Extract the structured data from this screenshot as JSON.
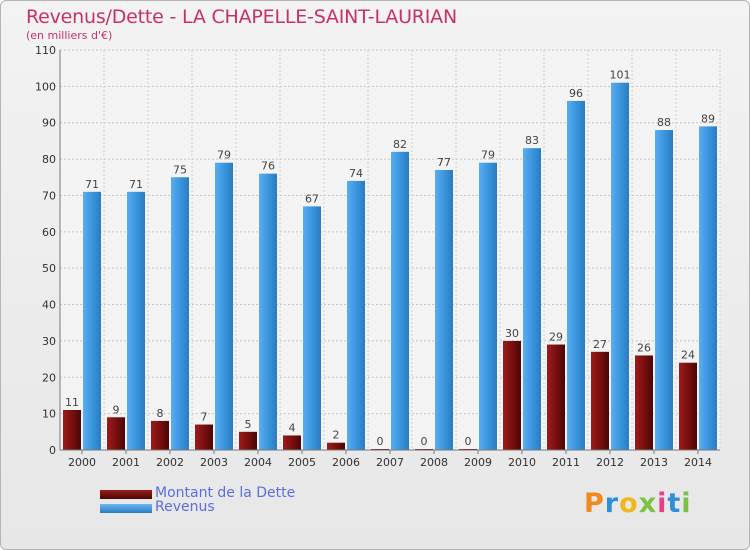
{
  "title": "Revenus/Dette - LA CHAPELLE-SAINT-LAURIAN",
  "subtitle": "(en milliers d'€)",
  "logo_text": "Proxiti",
  "colors": {
    "title": "#c8306a",
    "dette": "#7a0f0f",
    "revenus": "#3b96de",
    "legend_text": "#5a6ee0",
    "grid": "#c8c8c8"
  },
  "chart_data": {
    "type": "bar",
    "title": "Revenus/Dette - LA CHAPELLE-SAINT-LAURIAN",
    "subtitle": "(en milliers d'€)",
    "xlabel": "",
    "ylabel": "",
    "ylim": [
      0,
      110
    ],
    "yticks": [
      0,
      10,
      20,
      30,
      40,
      50,
      60,
      70,
      80,
      90,
      100,
      110
    ],
    "grid": true,
    "legend_position": "bottom-left",
    "categories": [
      "2000",
      "2001",
      "2002",
      "2003",
      "2004",
      "2005",
      "2006",
      "2007",
      "2008",
      "2009",
      "2010",
      "2011",
      "2012",
      "2013",
      "2014"
    ],
    "series": [
      {
        "name": "Montant de la Dette",
        "color": "#7a0f0f",
        "values": [
          11,
          9,
          8,
          7,
          5,
          4,
          2,
          0,
          0,
          0,
          30,
          29,
          27,
          26,
          24
        ]
      },
      {
        "name": "Revenus",
        "color": "#3b96de",
        "values": [
          71,
          71,
          75,
          79,
          76,
          67,
          74,
          82,
          77,
          79,
          83,
          96,
          101,
          88,
          89
        ]
      }
    ]
  }
}
